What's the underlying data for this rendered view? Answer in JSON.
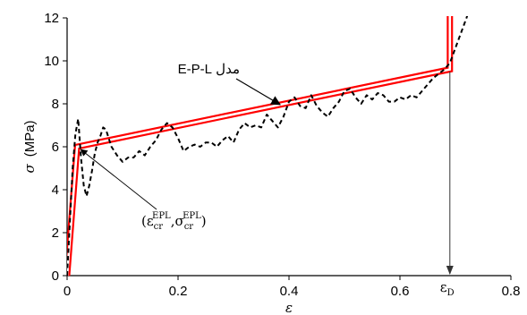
{
  "chart_data": {
    "type": "line",
    "title": "",
    "xlabel": "ε",
    "ylabel_symbol": "σ",
    "ylabel_unit": "(MPa)",
    "xlim": [
      0,
      0.8
    ],
    "ylim": [
      0,
      12
    ],
    "x_ticks": [
      0,
      0.2,
      0.4,
      0.6,
      0.8
    ],
    "x_tick_labels": [
      "0",
      "0.2",
      "0.4",
      "0.6",
      "0.8"
    ],
    "y_ticks": [
      0,
      2,
      4,
      6,
      8,
      10,
      12
    ],
    "y_tick_labels": [
      "0",
      "2",
      "4",
      "6",
      "8",
      "10",
      "12"
    ],
    "grid": false,
    "series": [
      {
        "style": "red-double-line",
        "color": "#ff0000",
        "x": [
          0,
          0.018,
          0.69,
          0.69
        ],
        "y": [
          0,
          6.0,
          9.6,
          12.5
        ]
      },
      {
        "style": "black-dashed",
        "color": "#000000",
        "x": [
          0,
          0.005,
          0.01,
          0.015,
          0.02,
          0.025,
          0.03,
          0.035,
          0.04,
          0.045,
          0.05,
          0.055,
          0.06,
          0.065,
          0.07,
          0.075,
          0.08,
          0.09,
          0.1,
          0.11,
          0.12,
          0.13,
          0.14,
          0.15,
          0.16,
          0.17,
          0.18,
          0.19,
          0.2,
          0.21,
          0.22,
          0.23,
          0.24,
          0.25,
          0.26,
          0.27,
          0.28,
          0.29,
          0.3,
          0.31,
          0.32,
          0.33,
          0.34,
          0.35,
          0.36,
          0.37,
          0.38,
          0.39,
          0.4,
          0.41,
          0.42,
          0.43,
          0.44,
          0.45,
          0.46,
          0.47,
          0.48,
          0.49,
          0.5,
          0.51,
          0.52,
          0.53,
          0.54,
          0.55,
          0.56,
          0.57,
          0.58,
          0.59,
          0.6,
          0.61,
          0.62,
          0.63,
          0.64,
          0.65,
          0.66,
          0.67,
          0.68,
          0.69,
          0.7,
          0.71,
          0.72,
          0.73,
          0.74
        ],
        "y": [
          0,
          2.5,
          5.0,
          6.6,
          7.3,
          5.5,
          4.2,
          3.7,
          4.2,
          4.9,
          5.7,
          6.2,
          6.5,
          6.9,
          6.8,
          6.4,
          6.0,
          5.6,
          5.3,
          5.5,
          5.5,
          5.8,
          5.6,
          6.0,
          6.3,
          6.8,
          7.1,
          6.9,
          6.4,
          5.8,
          6.0,
          6.1,
          6.0,
          6.2,
          6.2,
          6.0,
          6.3,
          6.5,
          6.2,
          6.8,
          7.1,
          6.9,
          7.0,
          6.9,
          7.5,
          7.2,
          6.9,
          7.4,
          8.1,
          8.3,
          7.9,
          7.8,
          8.4,
          7.9,
          7.6,
          7.4,
          7.8,
          8.1,
          8.6,
          8.7,
          8.3,
          8.0,
          8.4,
          8.2,
          8.5,
          8.4,
          8.1,
          8.1,
          8.3,
          8.2,
          8.4,
          8.3,
          8.6,
          8.9,
          9.2,
          9.4,
          9.6,
          9.9,
          10.6,
          11.3,
          12.0,
          12.8,
          13.5
        ]
      }
    ],
    "annotations": {
      "model_label": "مدل E-P-L",
      "cracking_point_label": "(ε_cr^EPL, σ_cr^EPL)",
      "cracking_point": [
        0.018,
        6.0
      ],
      "epsilon_d_label": "ε_D",
      "epsilon_d_value": 0.69
    },
    "crack_label": {
      "open": "(ε",
      "sub": "cr",
      "sup": "EPL",
      "comma": ",σ",
      "close": ")"
    },
    "eps_d_label": {
      "base": "ε",
      "sub": "D"
    }
  }
}
